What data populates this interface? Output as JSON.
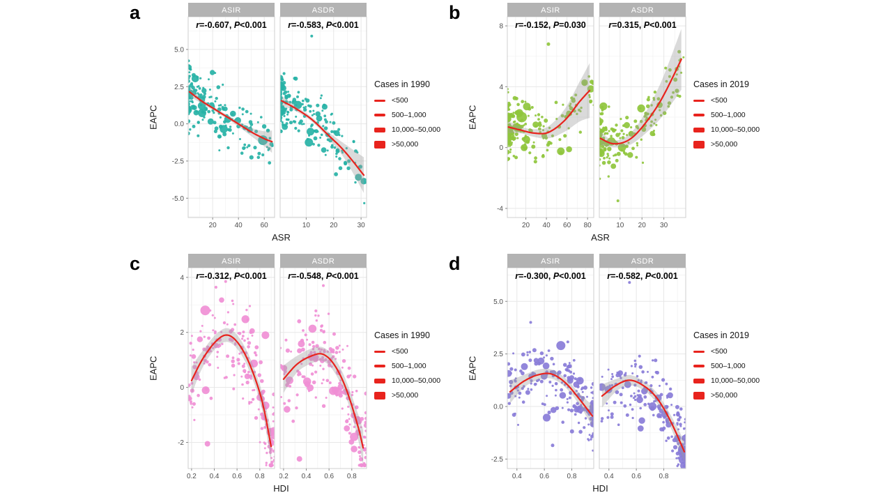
{
  "colors": {
    "red_line": "#e8231d",
    "strip_bg": "#b3b3b3",
    "strip_text": "#ffffff",
    "grid_major": "#e7e7e7",
    "grid_minor": "#f3f3f3",
    "panel_border": "#cfcfcf",
    "band": "#9e9e9e",
    "tick_text": "#4d4d4d",
    "axis_text": "#1a1a1a",
    "annotation_text": "#000000"
  },
  "chart_data": [
    {
      "panel": "a",
      "type": "scatter",
      "xlabel": "ASR",
      "ylabel": "EAPC",
      "point_color": "#27b2a6",
      "legend": {
        "title": "Cases in 1990",
        "items": [
          {
            "label": "<500",
            "h": 3
          },
          {
            "label": "500–1,000",
            "h": 4.5
          },
          {
            "label": "10,000–50,000",
            "h": 7
          },
          {
            "label": ">50,000",
            "h": 11
          }
        ]
      },
      "ylim": [
        -6.3,
        7.2
      ],
      "y_tick_vals": [
        5,
        2.5,
        0,
        -2.5,
        -5
      ],
      "y_tick_labels": [
        "5.0",
        "2.5",
        "0.0",
        "-2.5",
        "-5.0"
      ],
      "facets": [
        {
          "name": "ASIR",
          "r_eq": "=-0.607, ",
          "p_eq": "<0.001",
          "xlim": [
            1,
            68
          ],
          "x_tick_vals": [
            20,
            40,
            60
          ],
          "x_tick_labels": [
            "20",
            "40",
            "60"
          ],
          "trend": [
            [
              2,
              2.15,
              0.3
            ],
            [
              12,
              1.5,
              0.16
            ],
            [
              24,
              0.85,
              0.13
            ],
            [
              38,
              0.1,
              0.16
            ],
            [
              50,
              -0.55,
              0.28
            ],
            [
              60,
              -1.0,
              0.5
            ],
            [
              66,
              -1.2,
              0.75
            ]
          ],
          "scatter": {
            "n": 195,
            "seed": 11,
            "dir": 1,
            "skew": 2.6,
            "noise": 0.95
          },
          "extras": [
            [
              59,
              -1.1,
              7
            ]
          ]
        },
        {
          "name": "ASDR",
          "r_eq": "=-0.583, ",
          "p_eq": "<0.001",
          "xlim": [
            0.5,
            32
          ],
          "x_tick_vals": [
            10,
            20,
            30
          ],
          "x_tick_labels": [
            "10",
            "20",
            "30"
          ],
          "trend": [
            [
              1,
              1.55,
              0.35
            ],
            [
              6,
              1.05,
              0.18
            ],
            [
              12,
              0.3,
              0.15
            ],
            [
              18,
              -0.75,
              0.22
            ],
            [
              24,
              -1.85,
              0.5
            ],
            [
              31,
              -3.45,
              1.2
            ]
          ],
          "scatter": {
            "n": 195,
            "seed": 22,
            "dir": 1,
            "skew": 2.4,
            "noise": 0.9
          },
          "extras": [
            [
              12,
              5.9,
              2
            ],
            [
              11,
              -1.25,
              6
            ]
          ]
        }
      ]
    },
    {
      "panel": "b",
      "type": "scatter",
      "xlabel": "ASR",
      "ylabel": "EAPC",
      "point_color": "#8fc63c",
      "legend": {
        "title": "Cases in 2019",
        "items": [
          {
            "label": "<500",
            "h": 3
          },
          {
            "label": "500–1,000",
            "h": 4.5
          },
          {
            "label": "10,000–50,000",
            "h": 7
          },
          {
            "label": ">50,000",
            "h": 11
          }
        ]
      },
      "ylim": [
        -4.6,
        8.6
      ],
      "y_tick_vals": [
        8,
        4,
        0,
        -4
      ],
      "y_tick_labels": [
        "8",
        "4",
        "0",
        "-4"
      ],
      "facets": [
        {
          "name": "ASIR",
          "r_eq": "=-0.152, ",
          "p_eq": "=0.030",
          "xlim": [
            2,
            86
          ],
          "x_tick_vals": [
            20,
            40,
            60,
            80
          ],
          "x_tick_labels": [
            "20",
            "40",
            "60",
            "80"
          ],
          "trend": [
            [
              3,
              1.35,
              0.4
            ],
            [
              15,
              1.15,
              0.22
            ],
            [
              28,
              0.95,
              0.25
            ],
            [
              42,
              1.0,
              0.4
            ],
            [
              58,
              1.8,
              0.75
            ],
            [
              72,
              3.0,
              1.3
            ],
            [
              82,
              3.75,
              1.8
            ]
          ],
          "scatter": {
            "n": 195,
            "seed": 33,
            "dir": 1,
            "skew": 2.6,
            "noise": 1.0
          },
          "extras": [
            [
              42,
              6.8,
              2.5
            ],
            [
              16,
              2.0,
              7.5
            ],
            [
              21,
              2.7,
              5.5
            ],
            [
              12,
              1.3,
              6
            ]
          ]
        },
        {
          "name": "ASDR",
          "r_eq": "=0.315, ",
          "p_eq": "<0.001",
          "xlim": [
            0.5,
            40
          ],
          "x_tick_vals": [
            10,
            20,
            30
          ],
          "x_tick_labels": [
            "10",
            "20",
            "30"
          ],
          "trend": [
            [
              1,
              0.6,
              0.45
            ],
            [
              7,
              0.25,
              0.22
            ],
            [
              14,
              0.5,
              0.35
            ],
            [
              21,
              1.5,
              0.65
            ],
            [
              29,
              3.2,
              1.2
            ],
            [
              38,
              5.8,
              2.0
            ]
          ],
          "scatter": {
            "n": 195,
            "seed": 44,
            "dir": 1,
            "skew": 2.8,
            "noise": 0.95
          },
          "extras": [
            [
              37,
              6.3,
              2.5
            ],
            [
              9,
              -3.5,
              2
            ],
            [
              6,
              0.4,
              6
            ]
          ]
        }
      ]
    },
    {
      "panel": "c",
      "type": "scatter",
      "xlabel": "HDI",
      "ylabel": "EAPC",
      "point_color": "#f08fd5",
      "legend": {
        "title": "Cases in 1990",
        "items": [
          {
            "label": "<500",
            "h": 3
          },
          {
            "label": "500–1,000",
            "h": 4.5
          },
          {
            "label": "10,000–50,000",
            "h": 7
          },
          {
            "label": ">50,000",
            "h": 11
          }
        ]
      },
      "ylim": [
        -2.95,
        4.35
      ],
      "y_tick_vals": [
        4,
        2,
        0,
        -2
      ],
      "y_tick_labels": [
        "4",
        "2",
        "0",
        "-2"
      ],
      "facets": [
        {
          "name": "ASIR",
          "r_eq": "=-0.312, ",
          "p_eq": "<0.001",
          "xlim": [
            0.17,
            0.93
          ],
          "x_tick_vals": [
            0.2,
            0.4,
            0.6,
            0.8
          ],
          "x_tick_labels": [
            "0.2",
            "0.4",
            "0.6",
            "0.8"
          ],
          "trend": [
            [
              0.2,
              0.25,
              0.5
            ],
            [
              0.3,
              1.05,
              0.3
            ],
            [
              0.42,
              1.7,
              0.25
            ],
            [
              0.52,
              1.9,
              0.25
            ],
            [
              0.62,
              1.55,
              0.25
            ],
            [
              0.72,
              0.75,
              0.27
            ],
            [
              0.82,
              -0.5,
              0.33
            ],
            [
              0.9,
              -2.15,
              0.6
            ]
          ],
          "scatter": {
            "n": 190,
            "seed": 55,
            "dir": -1,
            "skew": 1.25,
            "noise": 0.85
          },
          "extras": [
            [
              0.32,
              2.8,
              7
            ],
            [
              0.85,
              1.9,
              5.5
            ],
            [
              0.5,
              3.85,
              2
            ],
            [
              0.34,
              -2.05,
              4
            ]
          ]
        },
        {
          "name": "ASDR",
          "r_eq": "=-0.548, ",
          "p_eq": "<0.001",
          "xlim": [
            0.17,
            0.93
          ],
          "x_tick_vals": [
            0.2,
            0.4,
            0.6,
            0.8
          ],
          "x_tick_labels": [
            "0.2",
            "0.4",
            "0.6",
            "0.8"
          ],
          "trend": [
            [
              0.2,
              0.3,
              0.5
            ],
            [
              0.32,
              0.85,
              0.3
            ],
            [
              0.45,
              1.15,
              0.27
            ],
            [
              0.55,
              1.2,
              0.25
            ],
            [
              0.65,
              0.8,
              0.27
            ],
            [
              0.75,
              -0.05,
              0.3
            ],
            [
              0.85,
              -1.35,
              0.45
            ],
            [
              0.9,
              -2.2,
              0.65
            ]
          ],
          "scatter": {
            "n": 190,
            "seed": 66,
            "dir": -1,
            "skew": 1.25,
            "noise": 0.8
          },
          "extras": [
            [
              0.55,
              3.7,
              2
            ],
            [
              0.82,
              -1.8,
              6
            ],
            [
              0.34,
              -2.6,
              4
            ]
          ]
        }
      ]
    },
    {
      "panel": "d",
      "type": "scatter",
      "xlabel": "HDI",
      "ylabel": "EAPC",
      "point_color": "#897cd8",
      "legend": {
        "title": "Cases in 2019",
        "items": [
          {
            "label": "<500",
            "h": 3
          },
          {
            "label": "500–1,000",
            "h": 4.5
          },
          {
            "label": "10,000–50,000",
            "h": 7
          },
          {
            "label": ">50,000",
            "h": 11
          }
        ]
      },
      "ylim": [
        -2.95,
        6.6
      ],
      "y_tick_vals": [
        5,
        2.5,
        0,
        -2.5
      ],
      "y_tick_labels": [
        "5.0",
        "2.5",
        "0.0",
        "-2.5"
      ],
      "facets": [
        {
          "name": "ASIR",
          "r_eq": "=-0.300, ",
          "p_eq": "<0.001",
          "xlim": [
            0.33,
            0.96
          ],
          "x_tick_vals": [
            0.4,
            0.6,
            0.8
          ],
          "x_tick_labels": [
            "0.4",
            "0.6",
            "0.8"
          ],
          "trend": [
            [
              0.35,
              0.7,
              0.55
            ],
            [
              0.45,
              1.2,
              0.3
            ],
            [
              0.55,
              1.5,
              0.25
            ],
            [
              0.65,
              1.55,
              0.22
            ],
            [
              0.75,
              1.15,
              0.22
            ],
            [
              0.85,
              0.4,
              0.27
            ],
            [
              0.95,
              -0.45,
              0.5
            ]
          ],
          "scatter": {
            "n": 190,
            "seed": 77,
            "dir": -1,
            "skew": 1.6,
            "noise": 0.85
          },
          "extras": [
            [
              0.72,
              2.9,
              6.5
            ],
            [
              0.5,
              4.0,
              2
            ],
            [
              0.66,
              -1.85,
              2.5
            ]
          ]
        },
        {
          "name": "ASDR",
          "r_eq": "=-0.582, ",
          "p_eq": "<0.001",
          "xlim": [
            0.33,
            0.96
          ],
          "x_tick_vals": [
            0.4,
            0.6,
            0.8
          ],
          "x_tick_labels": [
            "0.4",
            "0.6",
            "0.8"
          ],
          "trend": [
            [
              0.35,
              0.5,
              0.55
            ],
            [
              0.45,
              1.0,
              0.3
            ],
            [
              0.55,
              1.25,
              0.25
            ],
            [
              0.65,
              1.0,
              0.22
            ],
            [
              0.75,
              0.4,
              0.25
            ],
            [
              0.85,
              -0.7,
              0.3
            ],
            [
              0.95,
              -2.15,
              0.5
            ]
          ],
          "scatter": {
            "n": 190,
            "seed": 88,
            "dir": -1,
            "skew": 1.8,
            "noise": 0.8
          },
          "extras": [
            [
              0.55,
              5.9,
              2
            ],
            [
              0.93,
              -2.3,
              4
            ],
            [
              0.9,
              -1.5,
              5
            ]
          ]
        }
      ]
    }
  ]
}
